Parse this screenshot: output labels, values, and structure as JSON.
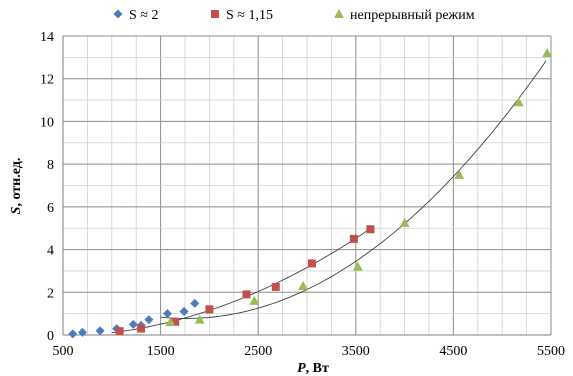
{
  "chart_data": {
    "type": "scatter",
    "xlabel": "P, Вт",
    "xlabel_parts": {
      "var": "P",
      "unit": ", Вт"
    },
    "ylabel": "S, отн.ед.",
    "ylabel_parts": {
      "var": "S",
      "unit": ", отн.ед."
    },
    "xlim": [
      500,
      5500
    ],
    "ylim": [
      0,
      14
    ],
    "x_ticks": [
      500,
      1500,
      2500,
      3500,
      4500,
      5500
    ],
    "y_ticks": [
      0,
      2,
      4,
      6,
      8,
      10,
      12,
      14
    ],
    "grid": true,
    "legend_position": "top",
    "series": [
      {
        "name": "S ≈ 2",
        "marker": "diamond",
        "color": "#4a7ebb",
        "points": [
          [
            600,
            0.05
          ],
          [
            700,
            0.12
          ],
          [
            880,
            0.2
          ],
          [
            1050,
            0.3
          ],
          [
            1220,
            0.5
          ],
          [
            1300,
            0.45
          ],
          [
            1380,
            0.72
          ],
          [
            1570,
            1.0
          ],
          [
            1740,
            1.1
          ],
          [
            1850,
            1.48
          ]
        ]
      },
      {
        "name": "S ≈ 1,15",
        "marker": "square",
        "color": "#c0504d",
        "points": [
          [
            1080,
            0.18
          ],
          [
            1300,
            0.3
          ],
          [
            1650,
            0.62
          ],
          [
            2000,
            1.2
          ],
          [
            2380,
            1.9
          ],
          [
            2680,
            2.25
          ],
          [
            3050,
            3.35
          ],
          [
            3480,
            4.5
          ],
          [
            3650,
            4.95
          ]
        ]
      },
      {
        "name": "непрерывный режим",
        "marker": "triangle",
        "color": "#9bbb59",
        "points": [
          [
            1600,
            0.6
          ],
          [
            1900,
            0.72
          ],
          [
            2460,
            1.6
          ],
          [
            2960,
            2.3
          ],
          [
            3520,
            3.2
          ],
          [
            4000,
            5.25
          ],
          [
            4560,
            7.5
          ],
          [
            5170,
            10.9
          ],
          [
            5460,
            13.2
          ]
        ]
      }
    ],
    "trendlines": [
      {
        "series": "S ≈ 1,15",
        "x_range": [
          1000,
          3650
        ],
        "coefficients": [
          0.0,
          -0.0,
          4.07e-07
        ]
      },
      {
        "series": "непрерывный режим",
        "x_range": [
          1500,
          5450
        ],
        "coefficients": [
          0.0,
          -0.0,
          4.07e-07
        ]
      }
    ]
  }
}
